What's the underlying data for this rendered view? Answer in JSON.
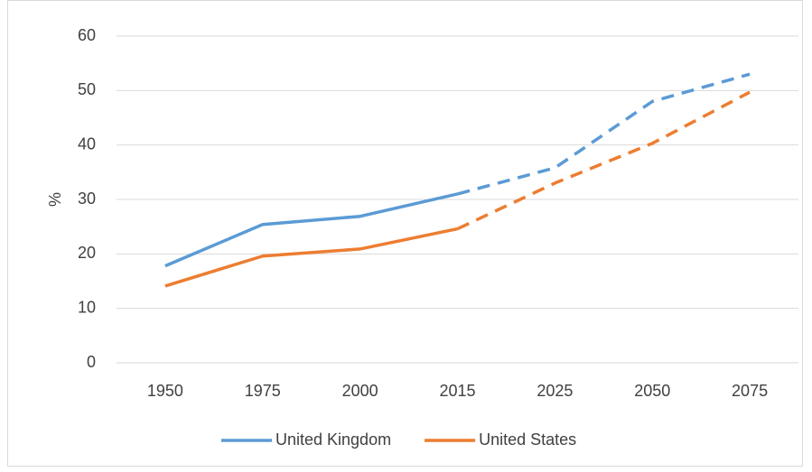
{
  "chart_data": {
    "type": "line",
    "y_label": "%",
    "categories": [
      "1950",
      "1975",
      "2000",
      "2015",
      "2025",
      "2050",
      "2075"
    ],
    "series": [
      {
        "name": "United Kingdom",
        "color": "#5b9bd5",
        "values": [
          17.8,
          25.4,
          26.9,
          31,
          35.8,
          48,
          53
        ]
      },
      {
        "name": "United States",
        "color": "#ed7d31",
        "values": [
          14.1,
          19.6,
          20.9,
          24.6,
          33,
          40.3,
          49.7
        ]
      }
    ],
    "dashed_from_index": 3,
    "ylim": [
      0,
      60
    ],
    "yticks": [
      0,
      10,
      20,
      30,
      40,
      50,
      60
    ],
    "grid": true,
    "legend": "bottom"
  }
}
